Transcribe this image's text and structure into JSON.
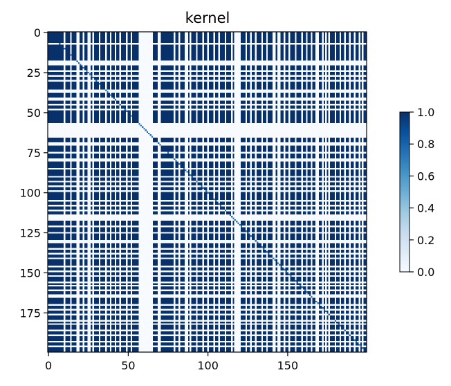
{
  "chart_data": {
    "type": "heatmap",
    "title": "kernel",
    "xlabel": "",
    "ylabel": "",
    "n": 200,
    "xlim": [
      0,
      199
    ],
    "ylim": [
      199,
      0
    ],
    "x_ticks": [
      0,
      50,
      100,
      150
    ],
    "y_ticks": [
      0,
      25,
      50,
      75,
      100,
      125,
      150,
      175
    ],
    "off_columns": [
      10,
      14,
      18,
      19,
      22,
      25,
      26,
      28,
      32,
      36,
      39,
      42,
      45,
      49,
      52,
      57,
      58,
      59,
      60,
      61,
      62,
      63,
      64,
      65,
      69,
      70,
      79,
      82,
      86,
      87,
      89,
      93,
      97,
      100,
      104,
      107,
      111,
      115,
      117,
      118,
      119,
      120,
      124,
      127,
      130,
      134,
      137,
      141,
      142,
      144,
      145,
      148,
      151,
      155,
      159,
      162,
      165,
      168,
      169,
      172,
      174,
      176,
      180,
      183,
      186,
      189,
      192,
      195,
      197
    ],
    "off_rows": [
      7,
      18,
      19,
      20,
      24,
      27,
      30,
      36,
      37,
      41,
      42,
      45,
      48,
      57,
      58,
      59,
      60,
      61,
      62,
      63,
      64,
      65,
      69,
      70,
      75,
      79,
      80,
      85,
      90,
      93,
      96,
      99,
      105,
      108,
      111,
      114,
      115,
      116,
      117,
      121,
      125,
      130,
      131,
      135,
      138,
      141,
      146,
      149,
      152,
      156,
      158,
      161,
      164,
      165,
      170,
      173,
      176,
      180,
      182,
      186,
      189,
      193,
      196
    ],
    "diagonal_value": 1,
    "on_value": 1,
    "off_value": 0,
    "colorbar": {
      "min": 0.0,
      "max": 1.0,
      "ticks": [
        "0.0",
        "0.2",
        "0.4",
        "0.6",
        "0.8",
        "1.0"
      ],
      "colormap": "Blues",
      "color_low": "#f7fbff",
      "color_high": "#08306b",
      "diagonal_color": "#2a6fb0"
    }
  }
}
